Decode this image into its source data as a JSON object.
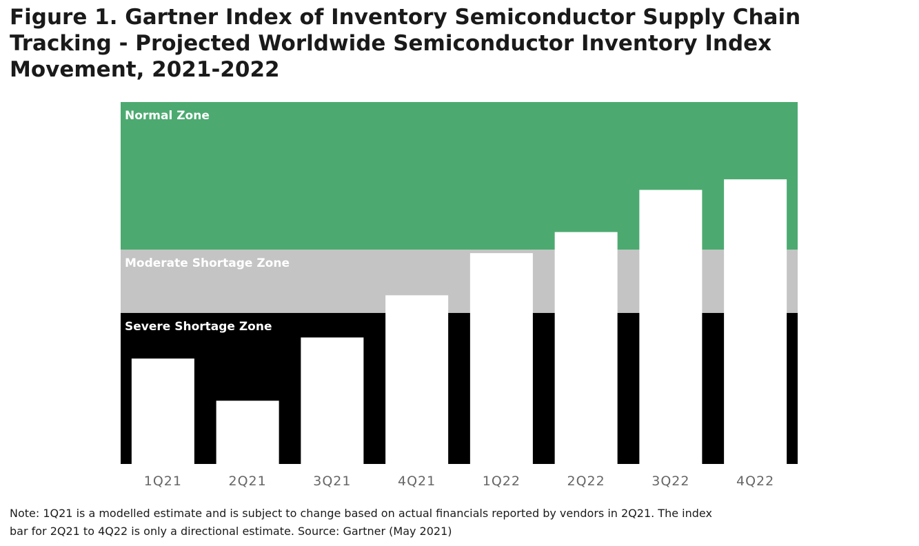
{
  "title_lines": [
    "Figure 1. Gartner Index of Inventory Semiconductor Supply Chain",
    "Tracking - Projected Worldwide Semiconductor Inventory Index",
    "Movement, 2021-2022"
  ],
  "note_lines": [
    "Note: 1Q21 is a modelled estimate and is subject to change based on actual financials reported by vendors in 2Q21. The index",
    "bar for 2Q21 to 4Q22 is only a directional estimate. Source: Gartner (May 2021)"
  ],
  "chart_data": {
    "type": "bar",
    "categories": [
      "1Q21",
      "2Q21",
      "3Q21",
      "4Q21",
      "1Q22",
      "2Q22",
      "3Q22",
      "4Q22"
    ],
    "values": [
      30,
      18,
      36,
      48,
      60,
      66,
      78,
      81
    ],
    "ylim": [
      0,
      103
    ],
    "grid": false,
    "bar_color": "#ffffff",
    "zones": [
      {
        "label": "Severe Shortage Zone",
        "from": 0,
        "to": 43,
        "color": "#000000",
        "label_color": "#ffffff"
      },
      {
        "label": "Moderate Shortage Zone",
        "from": 43,
        "to": 61,
        "color": "#c4c4c4",
        "label_color": "#ffffff"
      },
      {
        "label": "Normal Zone",
        "from": 61,
        "to": 103,
        "color": "#4caa70",
        "label_color": "#ffffff"
      }
    ],
    "tick_color": "#666666"
  }
}
